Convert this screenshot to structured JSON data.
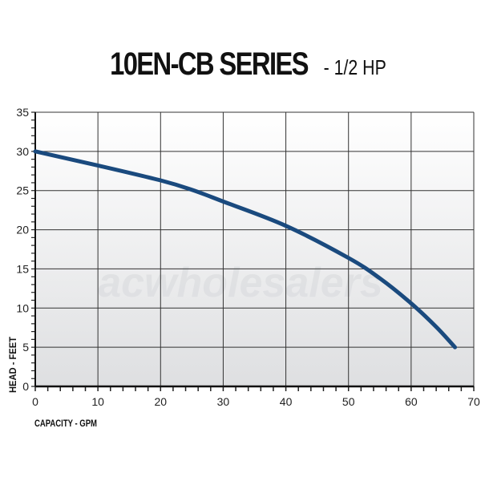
{
  "title": {
    "main": "10EN-CB SERIES",
    "sub": "- 1/2 HP"
  },
  "watermark": "acwholesalers",
  "chart_data": {
    "type": "line",
    "title": "10EN-CB SERIES - 1/2 HP",
    "xlabel": "CAPACITY - GPM",
    "ylabel": "HEAD - FEET",
    "xlim": [
      0,
      70
    ],
    "ylim": [
      0,
      35
    ],
    "xticks": [
      0,
      10,
      20,
      30,
      40,
      50,
      60,
      70
    ],
    "yticks": [
      0,
      5,
      10,
      15,
      20,
      25,
      30,
      35
    ],
    "grid": true,
    "series": [
      {
        "color": "#1a4a7e",
        "x": [
          0,
          10,
          20,
          25,
          30,
          40,
          50,
          55,
          60,
          64,
          67
        ],
        "y": [
          30,
          28.2,
          26.3,
          25.1,
          23.6,
          20.5,
          16.4,
          13.8,
          10.6,
          7.6,
          5
        ]
      }
    ]
  }
}
